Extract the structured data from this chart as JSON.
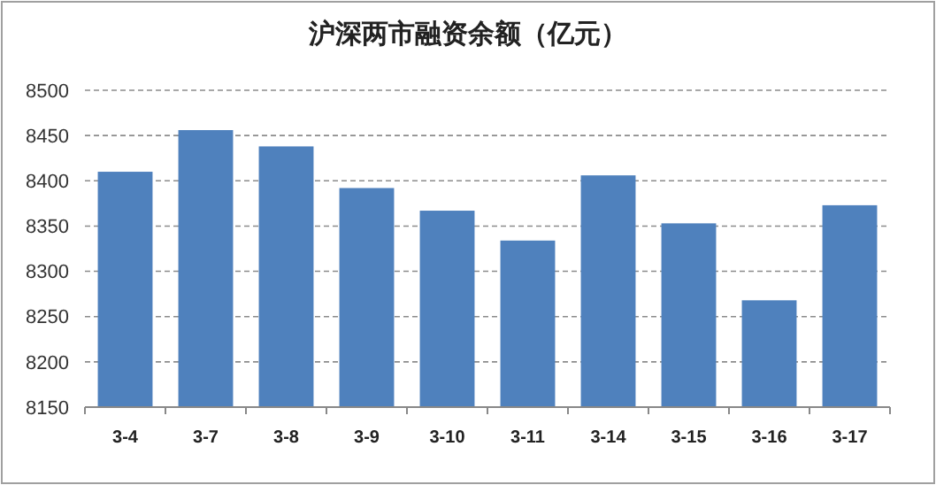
{
  "chart_data": {
    "type": "bar",
    "title": "沪深两市融资余额（亿元）",
    "categories": [
      "3-4",
      "3-7",
      "3-8",
      "3-9",
      "3-10",
      "3-11",
      "3-14",
      "3-15",
      "3-16",
      "3-17"
    ],
    "values": [
      8410,
      8456,
      8438,
      8392,
      8367,
      8334,
      8406,
      8353,
      8268,
      8373
    ],
    "color": "#4f81bd",
    "ylim": [
      8150,
      8500
    ],
    "yticks": [
      8150,
      8200,
      8250,
      8300,
      8350,
      8400,
      8450,
      8500
    ],
    "grid": "y"
  }
}
